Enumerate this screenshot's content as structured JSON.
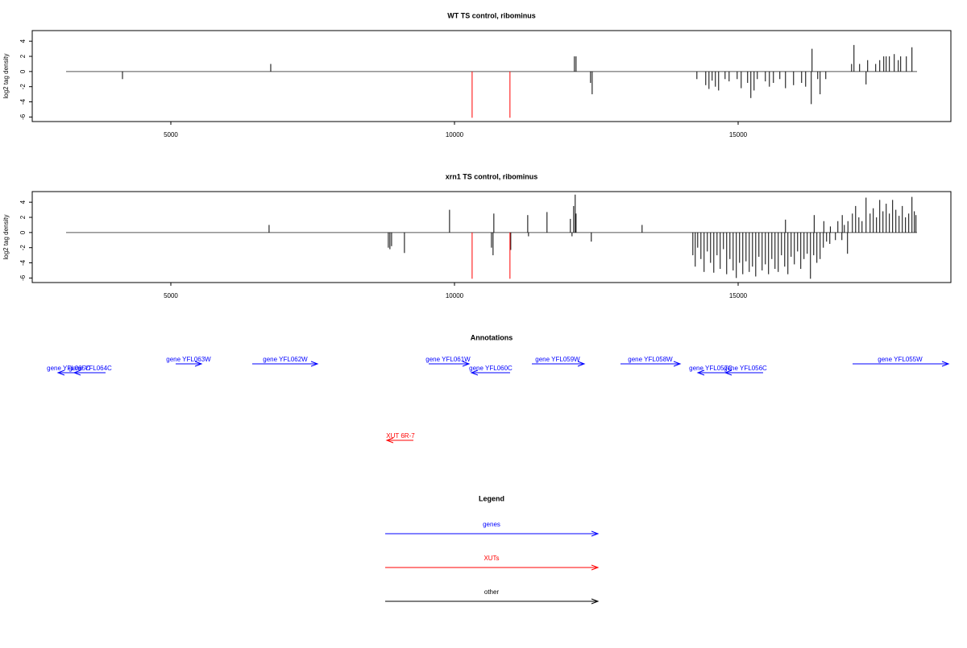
{
  "chart_data": [
    {
      "type": "spike",
      "title": "WT TS control, ribominus",
      "y_label": "log2 tag density",
      "xlim": [
        2557,
        18750
      ],
      "xticks": [
        5000,
        10000,
        15000
      ],
      "ylim": [
        -6.6,
        5.4
      ],
      "yticks": [
        -6,
        -4,
        -2,
        0,
        2,
        4
      ],
      "series": [
        {
          "color": "#000000",
          "x": [
            4148,
            6761,
            12114,
            12143,
            12398,
            12427,
            14273,
            14429,
            14486,
            14542,
            14599,
            14656,
            14770,
            14841,
            14983,
            15054,
            15167,
            15224,
            15281,
            15338,
            15480,
            15551,
            15622,
            15735,
            15835,
            15977,
            16119,
            16190,
            16289,
            16303,
            16403,
            16445,
            16545,
            17000,
            17042,
            17141,
            17255,
            17283,
            17425,
            17496,
            17567,
            17610,
            17666,
            17752,
            17823,
            17865,
            17965,
            18064
          ],
          "values": [
            -1,
            1,
            2,
            2,
            -1.5,
            -3,
            -1,
            -1.8,
            -2.3,
            -1.2,
            -2,
            -2.5,
            -1,
            -1.3,
            -1,
            -2.2,
            -1.5,
            -3.5,
            -2.5,
            -1,
            -1.3,
            -2,
            -1.5,
            -1,
            -2.2,
            -1.8,
            -1.5,
            -2,
            -4.3,
            3,
            -1,
            -3,
            -1,
            1,
            3.5,
            1,
            -1.7,
            1.5,
            1,
            1.5,
            2,
            2,
            2,
            2.3,
            1.5,
            2,
            2,
            3.2
          ]
        },
        {
          "color": "#ff0000",
          "x": [
            10311,
            10978
          ],
          "values": [
            -6.1,
            -6.1
          ]
        }
      ]
    },
    {
      "type": "spike",
      "title": "xrn1 TS control, ribominus",
      "y_label": "log2 tag density",
      "xlim": [
        2557,
        18750
      ],
      "xticks": [
        5000,
        10000,
        15000
      ],
      "ylim": [
        -6.6,
        5.4
      ],
      "yticks": [
        -6,
        -4,
        -2,
        0,
        2,
        4
      ],
      "series": [
        {
          "color": "#000000",
          "x": [
            6732,
            8834,
            8862,
            8891,
            9118,
            9913,
            10652,
            10680,
            10694,
            10992,
            11291,
            11305,
            11631,
            12043,
            12072,
            12100,
            12128,
            12143,
            12412,
            13307,
            14202,
            14244,
            14287,
            14344,
            14400,
            14457,
            14514,
            14571,
            14628,
            14684,
            14741,
            14798,
            14855,
            14912,
            14968,
            15025,
            15082,
            15139,
            15196,
            15253,
            15310,
            15366,
            15423,
            15480,
            15536,
            15594,
            15650,
            15707,
            15764,
            15821,
            15877,
            15934,
            15991,
            16048,
            16104,
            16161,
            16218,
            16275,
            16332,
            16388,
            16445,
            16502,
            16559,
            16616,
            16715,
            16829,
            16928,
            15835,
            16340,
            16510,
            16625,
            16758,
            16835,
            16872,
            16935,
            17014,
            17071,
            17128,
            17184,
            17255,
            17326,
            17382,
            17439,
            17496,
            17553,
            17610,
            17666,
            17723,
            17780,
            17837,
            17894,
            17950,
            18007,
            18064,
            18106,
            18135
          ],
          "values": [
            1,
            -2,
            -2.2,
            -1.8,
            -2.7,
            3,
            -2,
            -3,
            2.5,
            -2.3,
            2.3,
            -0.5,
            2.7,
            1.8,
            -0.5,
            3.5,
            5,
            2.5,
            -1.2,
            1,
            -3,
            -4.5,
            -2,
            -3.5,
            -5.2,
            -2.5,
            -4,
            -5.3,
            -3,
            -4.8,
            -2.2,
            -5.5,
            -3.5,
            -5,
            -6,
            -4,
            -5.5,
            -3.8,
            -5.2,
            -4.5,
            -5.8,
            -3.2,
            -5,
            -4.2,
            -5.5,
            -3.5,
            -4.8,
            -5.2,
            -3,
            -4.5,
            -5.5,
            -3.2,
            -4.2,
            -2.5,
            -4.8,
            -3.5,
            -2.8,
            -6.1,
            -3,
            -4,
            -3.5,
            -2,
            -1.2,
            -1.5,
            -1,
            -1,
            -2.8,
            1.7,
            2.3,
            1.5,
            0.8,
            1.5,
            2.3,
            1,
            1.5,
            2.5,
            3.5,
            2,
            1.5,
            4.6,
            2.5,
            3.2,
            2,
            4.3,
            2.8,
            3.8,
            2.5,
            4.3,
            3,
            2.2,
            3.5,
            2,
            2.5,
            4.7,
            2.8,
            2.3
          ]
        },
        {
          "color": "#ff0000",
          "x": [
            10311,
            10978
          ],
          "values": [
            -6.1,
            -6.1
          ]
        }
      ]
    }
  ],
  "annotations": {
    "title": "Annotations",
    "items": [
      {
        "label": "gene YFL065C",
        "color": "#0000ff"
      },
      {
        "label": "gene YFL064C",
        "color": "#0000ff"
      },
      {
        "label": "gene YFL063W",
        "color": "#0000ff"
      },
      {
        "label": "gene YFL062W",
        "color": "#0000ff"
      },
      {
        "label": "gene YFL061W",
        "color": "#0000ff"
      },
      {
        "label": "gene YFL060C",
        "color": "#0000ff"
      },
      {
        "label": "gene YFL059W",
        "color": "#0000ff"
      },
      {
        "label": "gene YFL058W",
        "color": "#0000ff"
      },
      {
        "label": "gene YFL057C",
        "color": "#0000ff"
      },
      {
        "label": "gene YFL056C",
        "color": "#0000ff"
      },
      {
        "label": "gene YFL055W",
        "color": "#0000ff"
      },
      {
        "label": "XUT 6R-7",
        "color": "#ff0000"
      }
    ]
  },
  "legend": {
    "title": "Legend",
    "entries": [
      {
        "label": "genes",
        "color": "#0000ff"
      },
      {
        "label": "XUTs",
        "color": "#ff0000"
      },
      {
        "label": "other",
        "color": "#000000"
      }
    ]
  }
}
